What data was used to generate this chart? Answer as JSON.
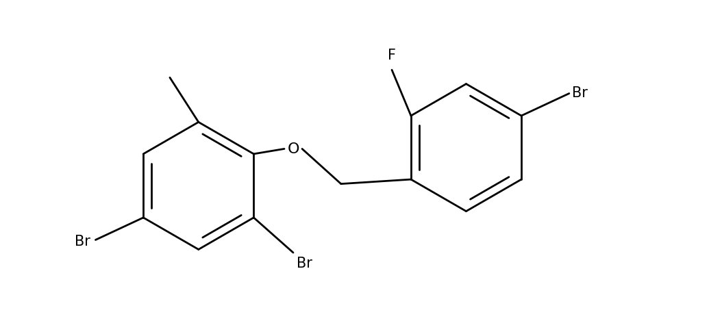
{
  "background_color": "#ffffff",
  "line_color": "#000000",
  "line_width": 2.0,
  "font_size": 15,
  "figsize": [
    10.54,
    4.89
  ],
  "dpi": 100,
  "xlim": [
    -0.8,
    10.5
  ],
  "ylim": [
    0.2,
    5.2
  ]
}
